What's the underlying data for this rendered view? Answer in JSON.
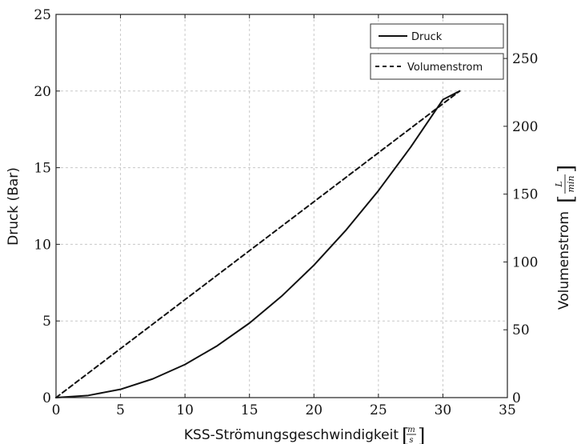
{
  "chart_data": {
    "type": "line",
    "title": "",
    "xlabel": "KSS-Strömungsgeschwindigkeit",
    "xlabel_unit": {
      "numerator": "m",
      "denominator": "s"
    },
    "ylabel_left": "Druck (Bar)",
    "ylabel_right": "Volumenstrom",
    "ylabel_right_unit": {
      "numerator": "L",
      "denominator": "min"
    },
    "xlim": [
      0,
      35
    ],
    "ylim_left": [
      0,
      25
    ],
    "ylim_right": [
      0,
      282.5
    ],
    "x_ticks": [
      "0",
      "5",
      "10",
      "15",
      "20",
      "25",
      "30",
      "35"
    ],
    "y_left_ticks": [
      "0",
      "5",
      "10",
      "15",
      "20",
      "25"
    ],
    "y_right_ticks": [
      "0",
      "50",
      "100",
      "150",
      "200",
      "250"
    ],
    "grid": true,
    "legend_position": "top-right",
    "series": [
      {
        "name": "Druck",
        "axis": "left",
        "style": "solid",
        "x": [
          0,
          2.5,
          5,
          7.5,
          10,
          12.5,
          15,
          17.5,
          20,
          22.5,
          25,
          27.5,
          30,
          31.3
        ],
        "y": [
          0,
          0.14,
          0.54,
          1.22,
          2.16,
          3.38,
          4.86,
          6.62,
          8.64,
          10.94,
          13.5,
          16.34,
          19.44,
          20.0
        ]
      },
      {
        "name": "Volumenstrom",
        "axis": "right",
        "style": "dashed",
        "x": [
          0,
          31.3
        ],
        "y": [
          0,
          226
        ]
      }
    ]
  }
}
